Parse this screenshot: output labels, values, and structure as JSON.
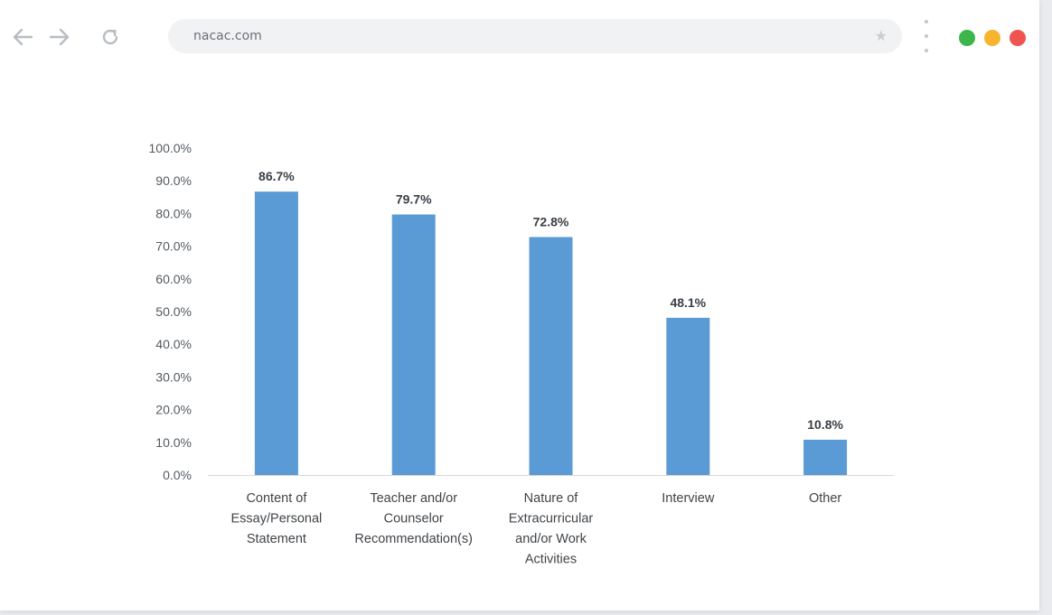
{
  "browser": {
    "url": "nacac.com",
    "icons": {
      "back": "arrow-left-icon",
      "forward": "arrow-right-icon",
      "reload": "reload-icon",
      "bookmark": "star-icon",
      "menu": "kebab-menu-icon"
    },
    "traffic_lights": [
      "#3cb54a",
      "#f6b52c",
      "#ef5450"
    ]
  },
  "colors": {
    "bar": "#5b9bd5",
    "axis": "#d9d9d9"
  },
  "chart_data": {
    "type": "bar",
    "categories": [
      [
        "Content of",
        "Essay/Personal",
        "Statement"
      ],
      [
        "Teacher and/or",
        "Counselor",
        "Recommendation(s)"
      ],
      [
        "Nature of",
        "Extracurricular",
        "and/or Work",
        "Activities"
      ],
      [
        "Interview"
      ],
      [
        "Other"
      ]
    ],
    "values": [
      86.7,
      79.7,
      72.8,
      48.1,
      10.8
    ],
    "value_labels": [
      "86.7%",
      "79.7%",
      "72.8%",
      "48.1%",
      "10.8%"
    ],
    "y_ticks": [
      0,
      10,
      20,
      30,
      40,
      50,
      60,
      70,
      80,
      90,
      100
    ],
    "y_tick_labels": [
      "0.0%",
      "10.0%",
      "20.0%",
      "30.0%",
      "40.0%",
      "50.0%",
      "60.0%",
      "70.0%",
      "80.0%",
      "90.0%",
      "100.0%"
    ],
    "ylim": [
      0,
      100
    ],
    "grid": false,
    "legend": "none"
  }
}
